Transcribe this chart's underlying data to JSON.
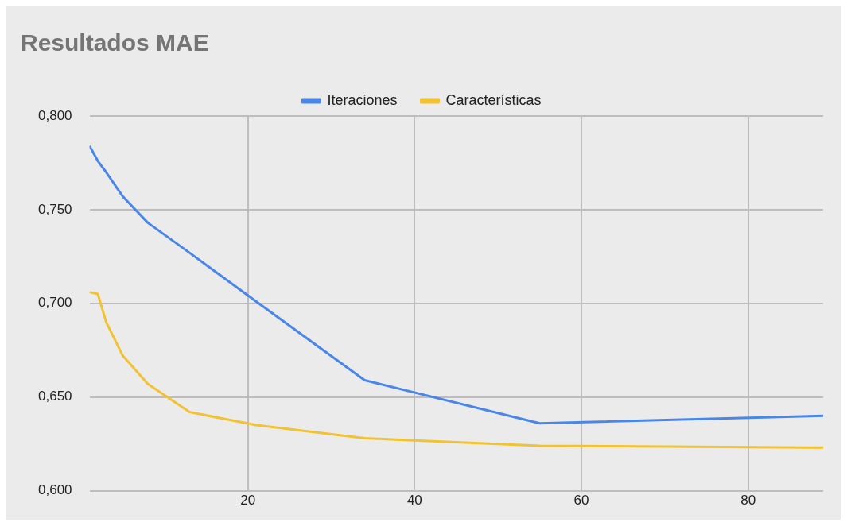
{
  "chart_data": {
    "type": "line",
    "title": "Resultados MAE",
    "x": [
      1,
      2,
      3,
      5,
      8,
      13,
      21,
      34,
      55,
      89
    ],
    "series": [
      {
        "name": "Iteraciones",
        "color": "#4a86e8",
        "values": [
          0.784,
          0.776,
          0.77,
          0.757,
          0.743,
          0.727,
          0.701,
          0.659,
          0.636,
          0.64
        ]
      },
      {
        "name": "Características",
        "color": "#f1c232",
        "values": [
          0.706,
          0.705,
          0.69,
          0.672,
          0.657,
          0.642,
          0.635,
          0.628,
          0.624,
          0.623
        ]
      }
    ],
    "xlim": [
      1,
      89
    ],
    "xticks": [
      20,
      40,
      60,
      80
    ],
    "ylim": [
      0.6,
      0.8
    ],
    "yticks": [
      {
        "value": 0.6,
        "label": "0,600"
      },
      {
        "value": 0.65,
        "label": "0,650"
      },
      {
        "value": 0.7,
        "label": "0,700"
      },
      {
        "value": 0.75,
        "label": "0,750"
      },
      {
        "value": 0.8,
        "label": "0,800"
      }
    ],
    "grid": true,
    "legend": "top",
    "marker": "none",
    "line_style": "solid"
  }
}
